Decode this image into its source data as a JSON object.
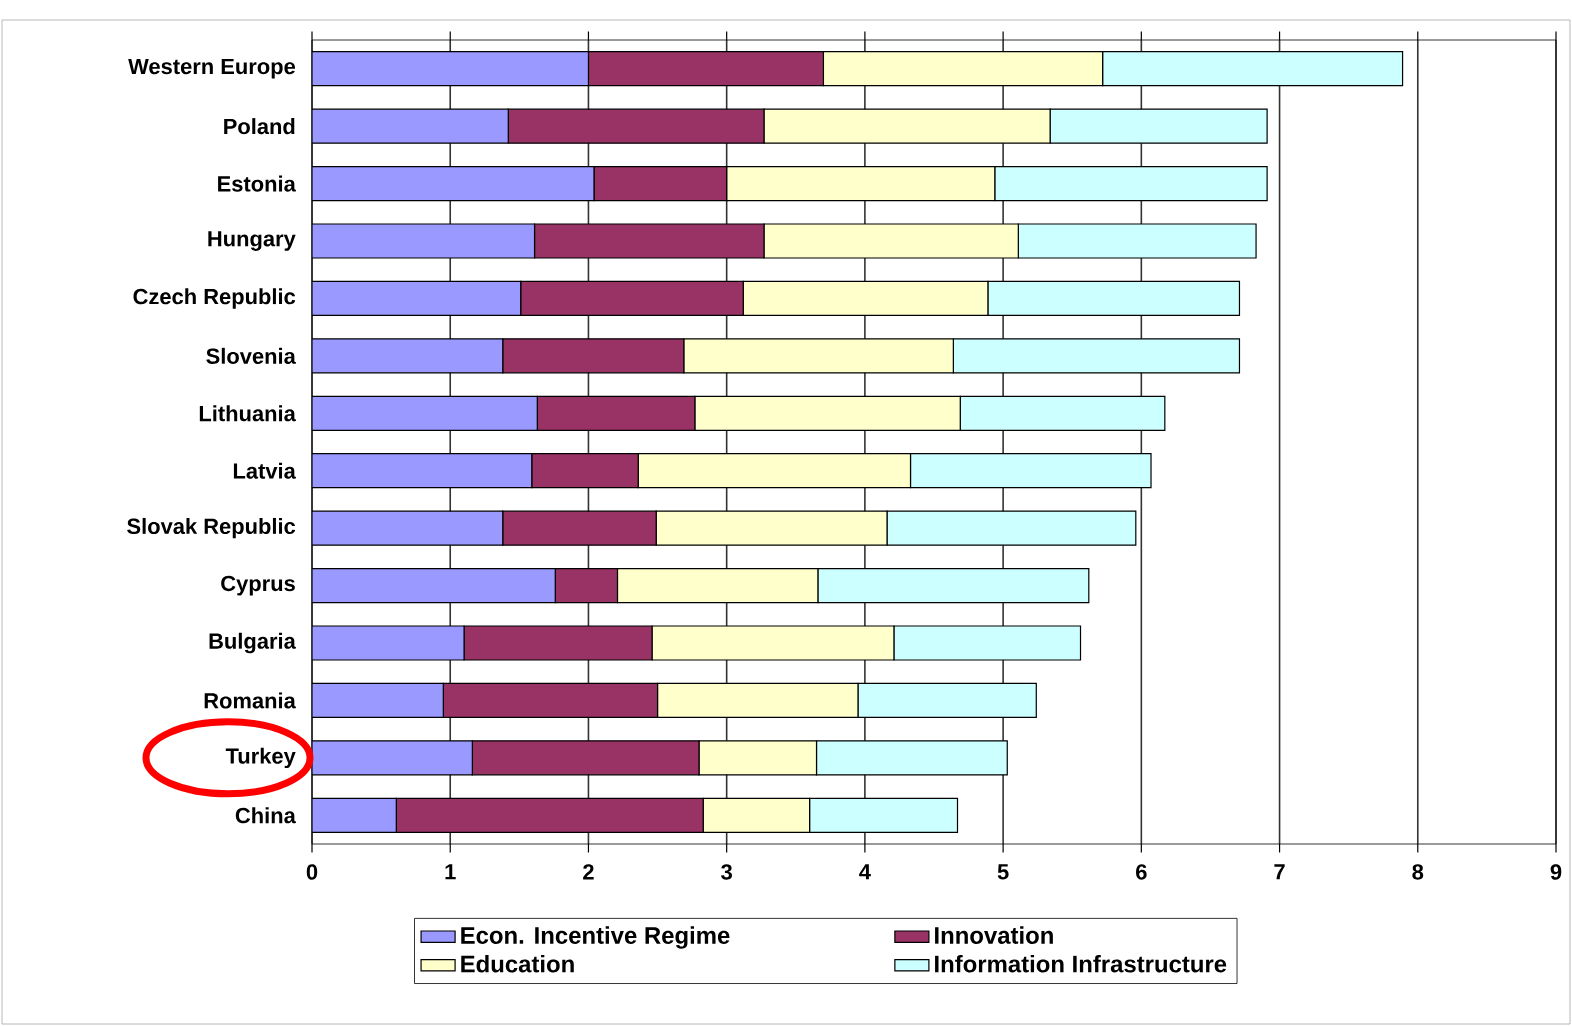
{
  "chart_data": {
    "type": "bar",
    "orientation": "horizontal",
    "stacked": true,
    "categories": [
      "Western Europe",
      "Poland",
      "Estonia",
      "Hungary",
      "Czech Republic",
      "Slovenia",
      "Lithuania",
      "Latvia",
      "Slovak Republic",
      "Cyprus",
      "Bulgaria",
      "Romania",
      "Turkey",
      "China"
    ],
    "series": [
      {
        "name": "Econ. Incentive Regime",
        "color": "#9999ff",
        "values": [
          2.0,
          1.42,
          2.04,
          1.61,
          1.51,
          1.38,
          1.63,
          1.59,
          1.38,
          1.76,
          1.1,
          0.95,
          1.16,
          0.61
        ]
      },
      {
        "name": "Innovation",
        "color": "#993366",
        "values": [
          1.7,
          1.85,
          0.96,
          1.66,
          1.61,
          1.31,
          1.14,
          0.77,
          1.11,
          0.45,
          1.36,
          1.55,
          1.64,
          2.22
        ]
      },
      {
        "name": "Education",
        "color": "#ffffcc",
        "values": [
          2.02,
          2.07,
          1.94,
          1.84,
          1.77,
          1.95,
          1.92,
          1.97,
          1.67,
          1.45,
          1.75,
          1.45,
          0.85,
          0.77
        ]
      },
      {
        "name": "Information Infrastructure",
        "color": "#ccffff",
        "values": [
          2.17,
          1.57,
          1.97,
          1.72,
          1.82,
          2.07,
          1.48,
          1.74,
          1.8,
          1.96,
          1.35,
          1.29,
          1.38,
          1.07
        ]
      }
    ],
    "xlim": [
      0,
      9
    ],
    "xticks": [
      0,
      1,
      2,
      3,
      4,
      5,
      6,
      7,
      8,
      9
    ],
    "grid": "x",
    "legend": "bottom"
  }
}
